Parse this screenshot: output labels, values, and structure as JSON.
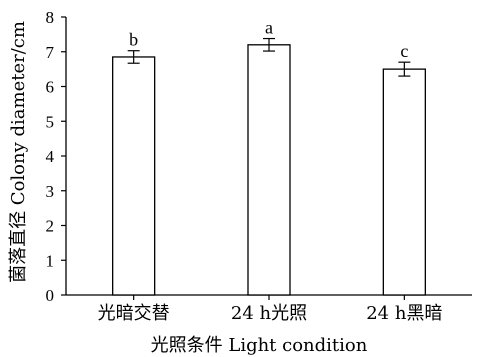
{
  "chart_data": {
    "type": "bar",
    "categories": [
      "光暗交替",
      "24 h光照",
      "24 h黑暗"
    ],
    "values": [
      6.85,
      7.2,
      6.5
    ],
    "errors": [
      0.18,
      0.18,
      0.2
    ],
    "significance": [
      "b",
      "a",
      "c"
    ],
    "xlabel": "光照条件 Light condition",
    "ylabel": "菌落直径 Colony diameter/cm",
    "ylim": [
      0,
      8
    ],
    "yticks": [
      "0",
      "1",
      "2",
      "3",
      "4",
      "5",
      "6",
      "7",
      "8"
    ],
    "grid": false,
    "legend": "none",
    "bar_fill": "#ffffff",
    "line_color": "#000000"
  }
}
